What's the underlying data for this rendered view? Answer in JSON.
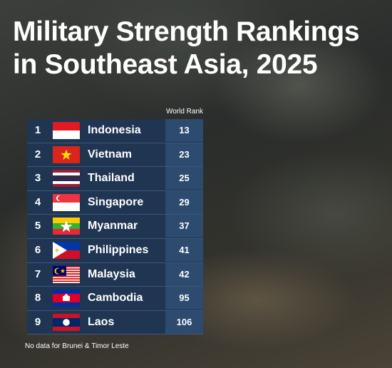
{
  "title": "Military Strength Rankings in Southeast Asia, 2025",
  "table": {
    "header": "World Rank",
    "rows": [
      [
        1,
        "Indonesia",
        13
      ],
      [
        2,
        "Vietnam",
        23
      ],
      [
        3,
        "Thailand",
        25
      ],
      [
        4,
        "Singapore",
        29
      ],
      [
        5,
        "Myanmar",
        37
      ],
      [
        6,
        "Philippines",
        41
      ],
      [
        7,
        "Malaysia",
        42
      ],
      [
        8,
        "Cambodia",
        95
      ],
      [
        9,
        "Laos",
        106
      ]
    ]
  },
  "footnote": "No data for Brunei & Timor Leste"
}
